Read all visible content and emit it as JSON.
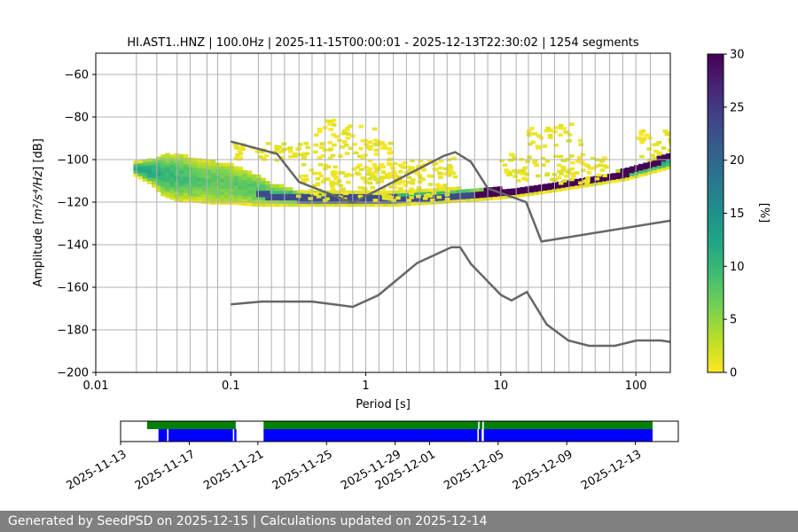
{
  "footer": {
    "text": "Generated by SeedPSD on 2025-12-15 | Calculations updated on 2025-12-14"
  },
  "colors": {
    "background": "#ffffff",
    "footer_bg": "#808080",
    "model_line": "#666666",
    "grid": "#b0b0b0",
    "coverage_green": "#008000",
    "coverage_blue": "#0000ff"
  },
  "chart_data": [
    {
      "type": "heatmap",
      "title": "HI.AST1..HNZ | 100.0Hz | 2025-11-15T00:00:01 - 2025-12-13T22:30:02 | 1254 segments",
      "xlabel": "Period [s]",
      "ylabel_prefix": "Amplitude [",
      "ylabel_math": "m²/s⁴/Hz",
      "ylabel_suffix": "] [dB]",
      "x_scale": "log",
      "xlim": [
        0.01,
        180
      ],
      "ylim": [
        -200,
        -50
      ],
      "x_ticks": [
        {
          "value": 0.01,
          "label": "0.01"
        },
        {
          "value": 0.1,
          "label": "0.1"
        },
        {
          "value": 1,
          "label": "1"
        },
        {
          "value": 10,
          "label": "10"
        },
        {
          "value": 100,
          "label": "100"
        }
      ],
      "y_ticks": [
        {
          "value": -60,
          "label": "−60"
        },
        {
          "value": -80,
          "label": "−80"
        },
        {
          "value": -100,
          "label": "−100"
        },
        {
          "value": -120,
          "label": "−120"
        },
        {
          "value": -140,
          "label": "−140"
        },
        {
          "value": -160,
          "label": "−160"
        },
        {
          "value": -180,
          "label": "−180"
        },
        {
          "value": -200,
          "label": "−200"
        }
      ],
      "grid_periods": [
        0.02,
        0.0283,
        0.04,
        0.05,
        0.0667,
        0.08,
        0.1,
        0.16,
        0.2,
        0.25,
        0.32,
        0.4,
        0.5,
        0.64,
        0.8,
        1.0,
        1.25,
        1.6,
        2,
        2.5,
        3.2,
        4,
        5,
        6.4,
        8,
        10,
        13,
        16,
        20,
        25,
        32,
        40,
        50,
        64,
        80,
        100,
        128
      ],
      "colorbar": {
        "label": "[%]",
        "range": [
          0,
          30
        ],
        "colormap": "viridis_r",
        "ticks": [
          {
            "value": 0,
            "label": "0"
          },
          {
            "value": 5,
            "label": "5"
          },
          {
            "value": 10,
            "label": "10"
          },
          {
            "value": 15,
            "label": "15"
          },
          {
            "value": 20,
            "label": "20"
          },
          {
            "value": 25,
            "label": "25"
          },
          {
            "value": 30,
            "label": "30"
          }
        ]
      },
      "noise_models": [
        {
          "points": [
            [
              0.1,
              -91.5
            ],
            [
              0.22,
              -97.3
            ],
            [
              0.32,
              -110.5
            ],
            [
              0.8,
              -120.3
            ],
            [
              3.8,
              -98.2
            ],
            [
              4.6,
              -96.5
            ],
            [
              6.0,
              -101
            ],
            [
              8.0,
              -113.5
            ],
            [
              15.4,
              -120
            ],
            [
              20,
              -138.5
            ],
            [
              180,
              -128.7
            ]
          ]
        },
        {
          "points": [
            [
              0.1,
              -168
            ],
            [
              0.17,
              -166.7
            ],
            [
              0.4,
              -166.7
            ],
            [
              0.8,
              -169.2
            ],
            [
              1.24,
              -163.7
            ],
            [
              2.4,
              -148.6
            ],
            [
              4.3,
              -141.2
            ],
            [
              5.0,
              -141.2
            ],
            [
              6.0,
              -149
            ],
            [
              10,
              -163.6
            ],
            [
              12,
              -166.2
            ],
            [
              15.6,
              -162.2
            ],
            [
              21.9,
              -177.5
            ],
            [
              31.6,
              -185
            ],
            [
              45,
              -187.5
            ],
            [
              70,
              -187.5
            ],
            [
              101,
              -185
            ],
            [
              154,
              -185
            ],
            [
              180,
              -185.7
            ]
          ]
        }
      ],
      "density": {
        "main_band": [
          [
            0.019,
            -102,
            -108,
            12
          ],
          [
            0.025,
            -100,
            -112,
            12
          ],
          [
            0.03,
            -98,
            -117,
            10
          ],
          [
            0.04,
            -98,
            -120,
            9
          ],
          [
            0.05,
            -100,
            -120,
            8
          ],
          [
            0.07,
            -101,
            -121,
            7
          ],
          [
            0.1,
            -103,
            -121,
            7
          ],
          [
            0.15,
            -108,
            -122,
            8
          ],
          [
            0.2,
            -112,
            -122,
            9
          ],
          [
            0.3,
            -115,
            -122,
            12
          ],
          [
            0.5,
            -116,
            -122,
            15
          ],
          [
            0.8,
            -116,
            -122,
            15
          ],
          [
            1.5,
            -116,
            -122,
            14
          ],
          [
            3,
            -115,
            -121,
            12
          ],
          [
            5,
            -114,
            -120,
            10
          ],
          [
            8,
            -114,
            -119,
            9
          ],
          [
            12,
            -114,
            -118,
            8
          ],
          [
            20,
            -112,
            -116,
            7
          ],
          [
            40,
            -110,
            -113,
            7
          ],
          [
            80,
            -105,
            -110,
            9
          ],
          [
            120,
            -101,
            -107,
            11
          ],
          [
            180,
            -98,
            -104,
            12
          ]
        ],
        "peak_ridge": [
          [
            0.15,
            -117
          ],
          [
            0.3,
            -119
          ],
          [
            0.6,
            -119
          ],
          [
            1,
            -119
          ],
          [
            2,
            -119
          ],
          [
            4,
            -118
          ],
          [
            8,
            -116
          ],
          [
            12,
            -115
          ],
          [
            20,
            -114
          ],
          [
            40,
            -111
          ],
          [
            80,
            -107
          ],
          [
            120,
            -103
          ],
          [
            180,
            -99
          ]
        ],
        "scatter_zones": [
          {
            "x": [
              0.1,
              1.5
            ],
            "y": [
              -101,
              -93
            ],
            "density": 0.35
          },
          {
            "x": [
              0.4,
              1.3
            ],
            "y": [
              -96,
              -82
            ],
            "density": 0.25
          },
          {
            "x": [
              0.3,
              4.0
            ],
            "y": [
              -120,
              -103
            ],
            "density": 0.35
          },
          {
            "x": [
              1.0,
              4.5
            ],
            "y": [
              -112,
              -100
            ],
            "density": 0.3
          },
          {
            "x": [
              9,
              60
            ],
            "y": [
              -112,
              -98
            ],
            "density": 0.35
          },
          {
            "x": [
              15,
              40
            ],
            "y": [
              -96,
              -84
            ],
            "density": 0.25
          },
          {
            "x": [
              100,
              180
            ],
            "y": [
              -100,
              -87
            ],
            "density": 0.35
          }
        ]
      }
    },
    {
      "type": "timeline",
      "x_ticks": [
        "2025-11-13",
        "2025-11-17",
        "2025-11-21",
        "2025-11-25",
        "2025-11-29",
        "2025-12-01",
        "2025-12-05",
        "2025-12-09",
        "2025-12-13"
      ],
      "xlim": [
        "2025-11-13T00:00:00",
        "2025-12-15T12:00:00"
      ],
      "green_spans": [
        [
          "2025-11-14T13:00",
          "2025-11-19T17:00"
        ],
        [
          "2025-11-21T08:00",
          "2025-12-03T20:00"
        ],
        [
          "2025-12-03T22:00",
          "2025-12-04T02:00"
        ],
        [
          "2025-12-04T04:00",
          "2025-12-14T00:00"
        ]
      ],
      "blue_spans": [
        [
          "2025-11-15T05:00",
          "2025-11-15T17:00"
        ],
        [
          "2025-11-15T19:00",
          "2025-11-19T13:00"
        ],
        [
          "2025-11-19T15:00",
          "2025-11-19T18:00"
        ],
        [
          "2025-11-21T08:00",
          "2025-12-03T19:00"
        ],
        [
          "2025-12-03T21:00",
          "2025-12-04T01:00"
        ],
        [
          "2025-12-04T04:00",
          "2025-12-14T00:00"
        ]
      ]
    }
  ]
}
